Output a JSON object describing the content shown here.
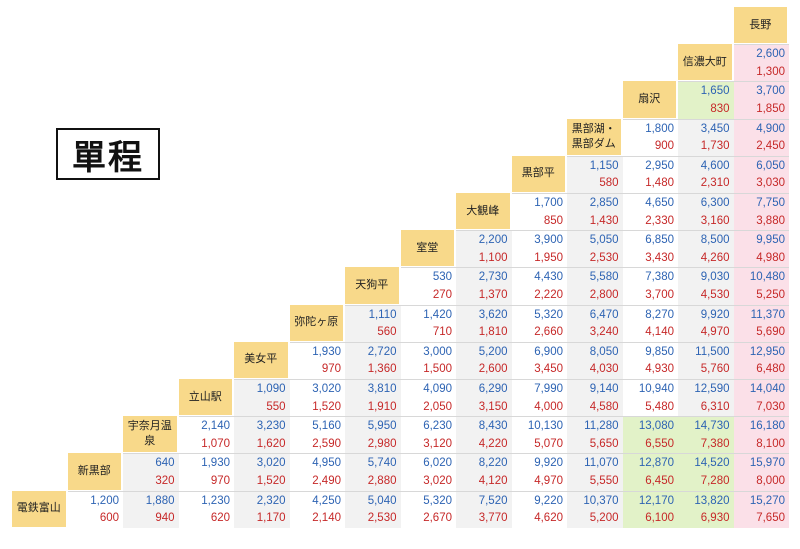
{
  "title": "單程",
  "stations": [
    "電鉄富山",
    "新黒部",
    "宇奈月温泉",
    "立山駅",
    "美女平",
    "弥陀ヶ原",
    "天狗平",
    "室堂",
    "大観峰",
    "黒部平",
    "黒部湖・黒部ダム",
    "扇沢",
    "信濃大町",
    "長野"
  ],
  "fares_top": [
    [
      "1,200",
      "1,880",
      "1,230",
      "2,320",
      "4,250",
      "5,040",
      "5,320",
      "7,520",
      "9,220",
      "10,370",
      "12,170",
      "13,820",
      "15,270"
    ],
    [
      "640",
      "1,930",
      "3,020",
      "4,950",
      "5,740",
      "6,020",
      "8,220",
      "9,920",
      "11,070",
      "12,870",
      "14,520",
      "15,970"
    ],
    [
      "2,140",
      "3,230",
      "5,160",
      "5,950",
      "6,230",
      "8,430",
      "10,130",
      "11,280",
      "13,080",
      "14,730",
      "16,180"
    ],
    [
      "1,090",
      "3,020",
      "3,810",
      "4,090",
      "6,290",
      "7,990",
      "9,140",
      "10,940",
      "12,590",
      "14,040"
    ],
    [
      "1,930",
      "2,720",
      "3,000",
      "5,200",
      "6,900",
      "8,050",
      "9,850",
      "11,500",
      "12,950"
    ],
    [
      "1,110",
      "1,420",
      "3,620",
      "5,320",
      "6,470",
      "8,270",
      "9,920",
      "11,370"
    ],
    [
      "530",
      "2,730",
      "4,430",
      "5,580",
      "7,380",
      "9,030",
      "10,480"
    ],
    [
      "2,200",
      "3,900",
      "5,050",
      "6,850",
      "8,500",
      "9,950"
    ],
    [
      "1,700",
      "2,850",
      "4,650",
      "6,300",
      "7,750"
    ],
    [
      "1,150",
      "2,950",
      "4,600",
      "6,050"
    ],
    [
      "1,800",
      "3,450",
      "4,900"
    ],
    [
      "1,650",
      "3,700"
    ],
    [
      "2,600"
    ]
  ],
  "fares_bottom": [
    [
      "600",
      "940",
      "620",
      "1,170",
      "2,140",
      "2,530",
      "2,670",
      "3,770",
      "4,620",
      "5,200",
      "6,100",
      "6,930",
      "7,650"
    ],
    [
      "320",
      "970",
      "1,520",
      "2,490",
      "2,880",
      "3,020",
      "4,120",
      "4,970",
      "5,550",
      "6,450",
      "7,280",
      "8,000"
    ],
    [
      "1,070",
      "1,620",
      "2,590",
      "2,980",
      "3,120",
      "4,220",
      "5,070",
      "5,650",
      "6,550",
      "7,380",
      "8,100"
    ],
    [
      "550",
      "1,520",
      "1,910",
      "2,050",
      "3,150",
      "4,000",
      "4,580",
      "5,480",
      "6,310",
      "7,030"
    ],
    [
      "970",
      "1,360",
      "1,500",
      "2,600",
      "3,450",
      "4,030",
      "4,930",
      "5,760",
      "6,480"
    ],
    [
      "560",
      "710",
      "1,810",
      "2,660",
      "3,240",
      "4,140",
      "4,970",
      "5,690"
    ],
    [
      "270",
      "1,370",
      "2,220",
      "2,800",
      "3,700",
      "4,530",
      "5,250"
    ],
    [
      "1,100",
      "1,950",
      "2,530",
      "3,430",
      "4,260",
      "4,980"
    ],
    [
      "850",
      "1,430",
      "2,330",
      "3,160",
      "3,880"
    ],
    [
      "580",
      "1,480",
      "2,310",
      "3,030"
    ],
    [
      "900",
      "1,730",
      "2,450"
    ],
    [
      "830",
      "1,850"
    ],
    [
      "1,300"
    ]
  ],
  "colors": {
    "station_bg": "#f8d98a",
    "fare_top": "#2d63b3",
    "fare_bottom": "#c62828",
    "alt_column": "#f2f2f2",
    "highlight_green": "#e2f2c8",
    "highlight_pink": "#fbe0e8"
  }
}
